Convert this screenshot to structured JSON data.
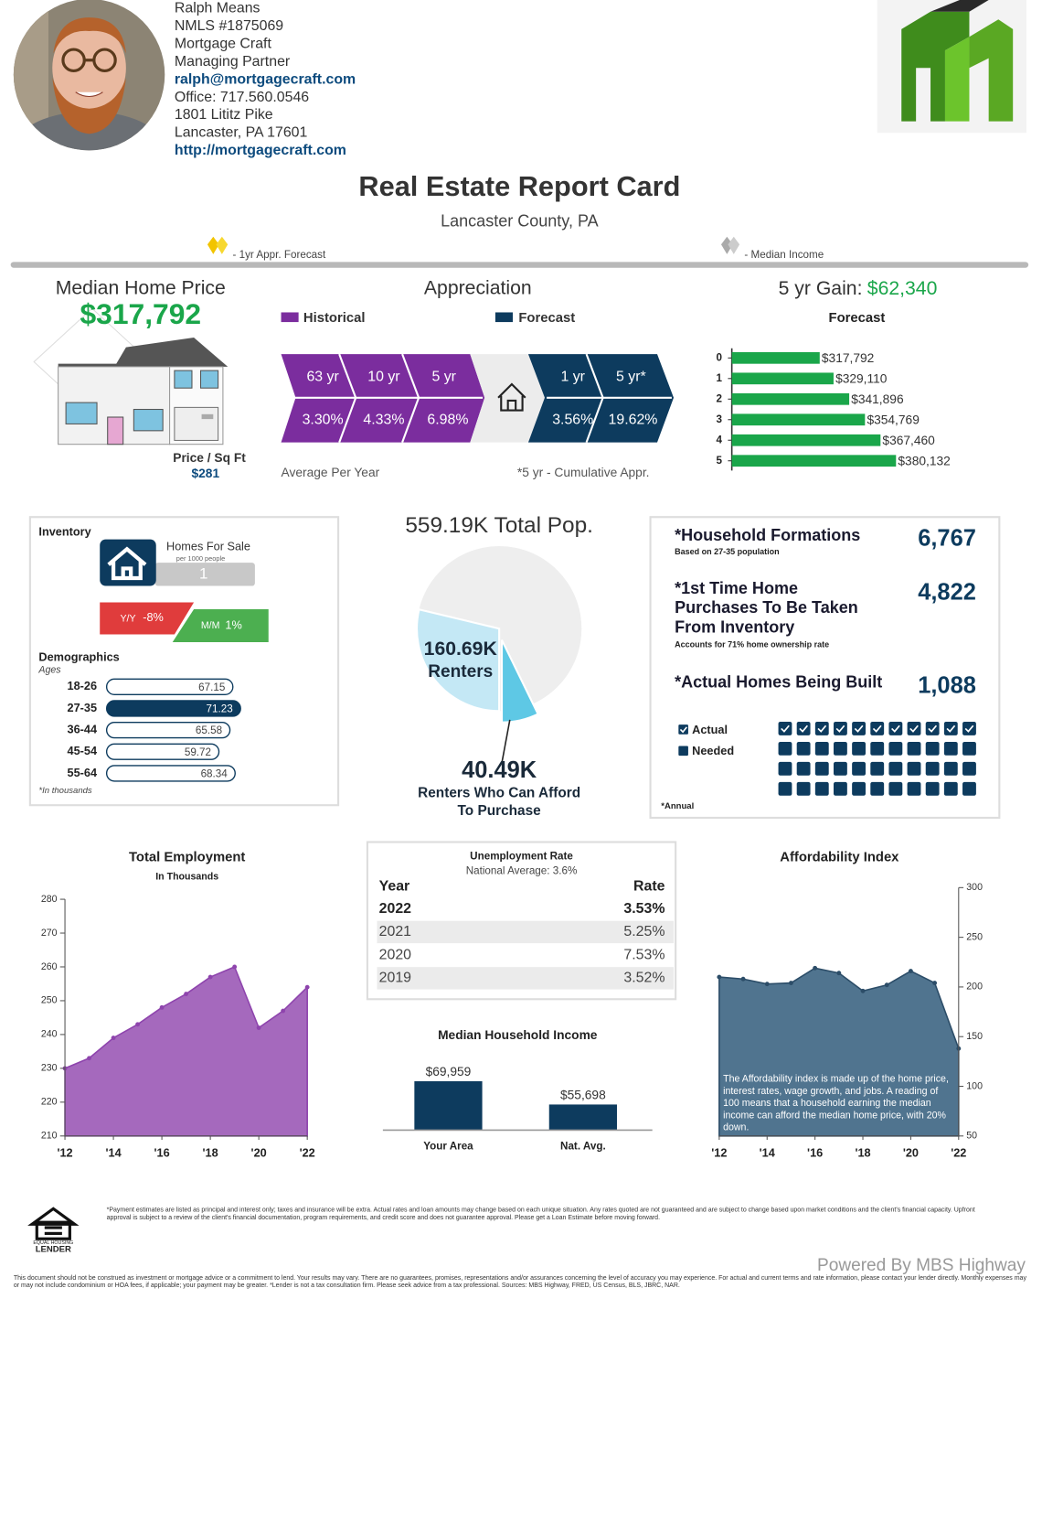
{
  "agent": {
    "lines": [
      "Ralph Means",
      "NMLS #1875069",
      "Mortgage Craft",
      "Managing Partner",
      "ralph@mortgagecraft.com",
      "Office: 717.560.0546",
      "1801 Lititz Pike",
      "Lancaster, PA 17601",
      "http://mortgagecraft.com"
    ]
  },
  "report": {
    "title": "Real Estate Report Card",
    "subtitle": "Lancaster County, PA",
    "legend_forecast": "- 1yr Appr. Forecast",
    "legend_income": "- Median Income"
  },
  "median_price": {
    "heading": "Median Home Price",
    "value": "$317,792",
    "sqft_label": "Price / Sq Ft",
    "sqft_value": "$281"
  },
  "appreciation": {
    "heading": "Appreciation",
    "legend_historical": "Historical",
    "legend_forecast": "Forecast",
    "historical_periods": [
      "63 yr",
      "10 yr",
      "5 yr"
    ],
    "historical_rates": [
      "3.30%",
      "4.33%",
      "6.98%"
    ],
    "forecast_periods": [
      "1 yr",
      "5 yr*"
    ],
    "forecast_rates": [
      "3.56%",
      "19.62%"
    ],
    "note_left": "Average Per Year",
    "note_right": "*5 yr - Cumulative Appr."
  },
  "gain": {
    "label": "5 yr Gain:",
    "value": "$62,340"
  },
  "inventory": {
    "title": "Inventory",
    "homes_label": "Homes For Sale",
    "homes_sublabel": "per 1000 people",
    "homes_value": "1",
    "yy_label": "Y/Y",
    "yy_value": "-8%",
    "mm_label": "M/M",
    "mm_value": "1%"
  },
  "households": {
    "formations_label": "*Household Formations",
    "formations_note": "Based on 27-35 population",
    "formations_value": "6,767",
    "purchases_label": "*1st Time Home Purchases To Be Taken From Inventory",
    "purchases_note": "Accounts for 71% home ownership rate",
    "purchases_value": "4,822",
    "built_label": "*Actual Homes Being Built",
    "built_value": "1,088",
    "legend_actual": "Actual",
    "legend_needed": "Needed",
    "note": "*Annual"
  },
  "unemployment": {
    "title": "Unemployment Rate",
    "subtitle": "National Average: 3.6%",
    "header": [
      "Year",
      "Rate"
    ],
    "rows": [
      [
        "2022",
        "3.53%"
      ],
      [
        "2021",
        "5.25%"
      ],
      [
        "2020",
        "7.53%"
      ],
      [
        "2019",
        "3.52%"
      ]
    ]
  },
  "footer": {
    "housing_top": "EQUAL HOUSING",
    "housing_bottom": "LENDER",
    "disclaimer": "*Payment estimates are listed as principal and interest only; taxes and insurance will be extra. Actual rates and loan amounts may change based on each unique situation. Any rates quoted are not guaranteed and are subject to change based upon market conditions and the client's financial capacity. Upfront approval is subject to a review of the client's financial documentation, program requirements, and credit score and does not guarantee approval. Please get a Loan Estimate before moving forward.",
    "powered": "Powered By MBS Highway",
    "legal": "This document should not be construed as investment or mortgage advice or a commitment to lend. Your results may vary. There are no guarantees, promises, representations and/or assurances concerning the level of accuracy you may experience. For actual and current terms and rate information, please contact your lender directly. Monthly expenses may or may not include condominium or HOA fees, if applicable; your payment may be greater. *Lender is not a tax consultation firm. Please seek advice from a tax professional. Sources: MBS Highway, FRED, US Census, BLS, JBRC, NAR."
  },
  "chart_data": [
    {
      "type": "bar",
      "orientation": "horizontal",
      "title": "Forecast",
      "categories": [
        "0",
        "1",
        "2",
        "3",
        "4",
        "5"
      ],
      "values": [
        317792,
        329110,
        341896,
        354769,
        367460,
        380132
      ],
      "value_labels": [
        "$317,792",
        "$329,110",
        "$341,896",
        "$354,769",
        "$367,460",
        "$380,132"
      ],
      "color": "#1aa64a",
      "xlim": [
        246000,
        440000
      ]
    },
    {
      "type": "pie",
      "categories": [
        "Total Pop.",
        "Renters",
        "Renters Who Can Afford To Purchase"
      ],
      "values": [
        559.19,
        160.69,
        40.49
      ],
      "value_labels": [
        "559.19K",
        "160.69K",
        "40.49K"
      ],
      "colors": [
        "#eeeeee",
        "#c4e8f5",
        "#5ec8e5"
      ]
    },
    {
      "type": "bar",
      "orientation": "horizontal",
      "style": "pill",
      "title": "Demographics",
      "subtitle": "Ages",
      "note": "*In thousands",
      "categories": [
        "18-26",
        "27-35",
        "36-44",
        "45-54",
        "55-64"
      ],
      "values": [
        67.15,
        71.23,
        65.58,
        59.72,
        68.34
      ],
      "color": "#ffffff",
      "highlight_color": "#0d3b5e",
      "highlight_category": "27-35",
      "xlim": [
        0,
        75
      ]
    },
    {
      "type": "area",
      "title": "Total Employment",
      "subtitle": "In Thousands",
      "x": [
        2012,
        2013,
        2014,
        2015,
        2016,
        2017,
        2018,
        2019,
        2020,
        2021,
        2022
      ],
      "values": [
        230,
        233,
        239,
        243,
        248,
        252,
        257,
        260,
        242,
        247,
        254
      ],
      "color": "#9b59b6",
      "axis_side": "left",
      "xlim": [
        2012,
        2022
      ],
      "xticks": [
        {
          "value": 2012,
          "label": "'12"
        },
        {
          "value": 2014,
          "label": "'14"
        },
        {
          "value": 2016,
          "label": "'16"
        },
        {
          "value": 2018,
          "label": "'18"
        },
        {
          "value": 2020,
          "label": "'20"
        },
        {
          "value": 2022,
          "label": "'22"
        }
      ],
      "ylim": [
        210,
        280
      ],
      "yticks": [
        210,
        220,
        230,
        240,
        250,
        260,
        270,
        280
      ]
    },
    {
      "type": "bar",
      "orientation": "vertical",
      "title": "Median Household Income",
      "categories": [
        "Your Area",
        "Nat. Avg."
      ],
      "values": [
        69959,
        55698
      ],
      "value_labels": [
        "$69,959",
        "$55,698"
      ],
      "color": "#0d3b5e",
      "ylim": [
        40000,
        100000
      ]
    },
    {
      "type": "area",
      "title": "Affordability Index",
      "note": "The Affordability index is made up of the home price, interest rates, wage growth, and jobs. A reading of 100 means that a household earning the median income can afford the median home price, with 20% down.",
      "x": [
        2012,
        2013,
        2014,
        2015,
        2016,
        2017,
        2018,
        2019,
        2020,
        2021,
        2022
      ],
      "values": [
        210,
        208,
        203,
        204,
        219,
        214,
        196,
        202,
        216,
        204,
        138
      ],
      "color": "#3d6583",
      "axis_side": "right",
      "xlim": [
        2012,
        2022
      ],
      "xticks": [
        {
          "value": 2012,
          "label": "'12"
        },
        {
          "value": 2014,
          "label": "'14"
        },
        {
          "value": 2016,
          "label": "'16"
        },
        {
          "value": 2018,
          "label": "'18"
        },
        {
          "value": 2020,
          "label": "'20"
        },
        {
          "value": 2022,
          "label": "'22"
        }
      ],
      "ylim": [
        50,
        300
      ],
      "yticks": [
        50,
        100,
        150,
        200,
        250,
        300
      ]
    }
  ]
}
